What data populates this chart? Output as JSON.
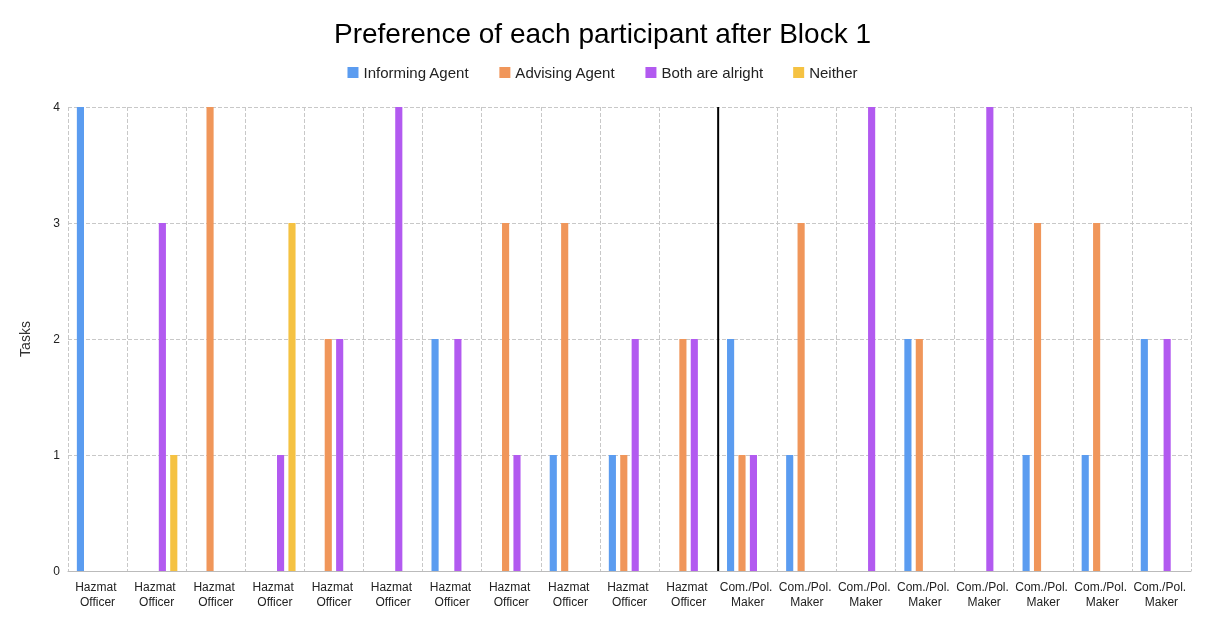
{
  "chart_data": {
    "type": "bar",
    "title": "Preference of each participant after Block 1",
    "ylabel": "Tasks",
    "categories": [
      "Hazmat Officer",
      "Hazmat Officer",
      "Hazmat Officer",
      "Hazmat Officer",
      "Hazmat Officer",
      "Hazmat Officer",
      "Hazmat Officer",
      "Hazmat Officer",
      "Hazmat Officer",
      "Hazmat Officer",
      "Hazmat Officer",
      "Com./Pol. Maker",
      "Com./Pol. Maker",
      "Com./Pol. Maker",
      "Com./Pol. Maker",
      "Com./Pol. Maker",
      "Com./Pol. Maker",
      "Com./Pol. Maker",
      "Com./Pol. Maker"
    ],
    "series": [
      {
        "name": "Informing Agent",
        "color": "#5b9cf0",
        "values": [
          4,
          0,
          0,
          0,
          0,
          0,
          2,
          0,
          1,
          1,
          0,
          2,
          1,
          0,
          2,
          0,
          1,
          1,
          2
        ]
      },
      {
        "name": "Advising Agent",
        "color": "#f0965a",
        "values": [
          0,
          0,
          4,
          0,
          2,
          0,
          0,
          3,
          3,
          1,
          2,
          1,
          3,
          0,
          2,
          0,
          3,
          3,
          0
        ]
      },
      {
        "name": "Both are alright",
        "color": "#b25af0",
        "values": [
          0,
          3,
          0,
          1,
          2,
          4,
          2,
          1,
          0,
          2,
          2,
          1,
          0,
          4,
          0,
          4,
          0,
          0,
          2
        ]
      },
      {
        "name": "Neither",
        "color": "#f5c242",
        "values": [
          0,
          1,
          0,
          3,
          0,
          0,
          0,
          0,
          0,
          0,
          0,
          0,
          0,
          0,
          0,
          0,
          0,
          0,
          0
        ]
      }
    ],
    "ylim": [
      0,
      4
    ],
    "yticks": [
      0,
      1,
      2,
      3,
      4
    ],
    "grid": true,
    "legend": "top",
    "ref_lines": [
      {
        "axis": "x",
        "value": "Com./Pol. Maker",
        "color": "#000000"
      }
    ]
  }
}
